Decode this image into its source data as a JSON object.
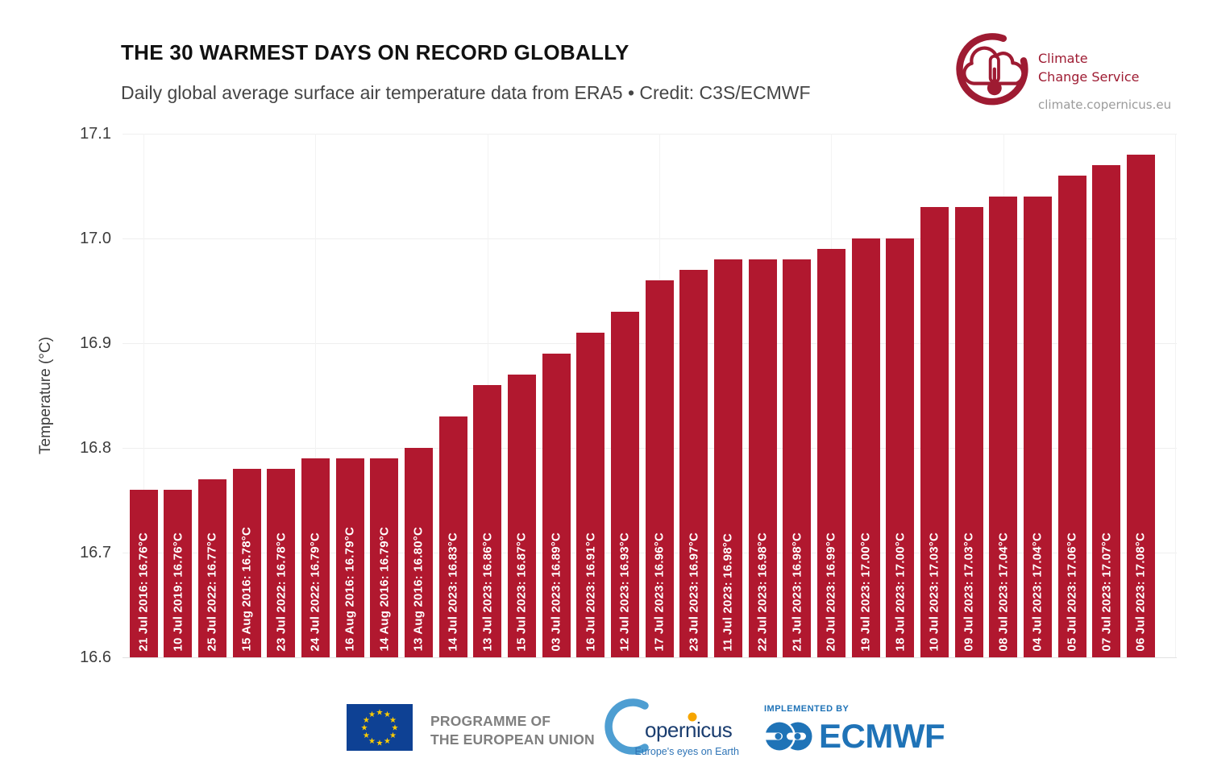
{
  "header": {
    "title": "THE 30 WARMEST DAYS ON RECORD GLOBALLY",
    "subtitle": "Daily global average surface air temperature data from ERA5 • Credit: C3S/ECMWF"
  },
  "c3s_logo": {
    "line1": "Climate",
    "line2": "Change Service",
    "url": "climate.copernicus.eu"
  },
  "colors": {
    "bar_red": "#b1182f",
    "c3s_red": "#9e1b32",
    "ecmwf_blue": "#1f73b7",
    "eu_flag_blue": "#0e4194",
    "eu_star_yellow": "#ffcc00",
    "copernicus_navy": "#1b3e70",
    "copernicus_tagline_blue": "#2e74b6",
    "copernicus_orange": "#f6a500"
  },
  "chart_data": {
    "type": "bar",
    "title": "THE 30 WARMEST DAYS ON RECORD GLOBALLY",
    "subtitle": "Daily global average surface air temperature data from ERA5 • Credit: C3S/ECMWF",
    "xlabel": "",
    "ylabel": "Temperature (°C)",
    "ylim": [
      16.6,
      17.1
    ],
    "yticks": [
      "16.6",
      "16.7",
      "16.8",
      "16.9",
      "17.0",
      "17.1"
    ],
    "grid": true,
    "legend_position": "none",
    "bar_color": "#b1182f",
    "categories": [
      "21 Jul 2016",
      "10 Jul 2019",
      "25 Jul 2022",
      "15 Aug 2016",
      "23 Jul 2022",
      "24 Jul 2022",
      "16 Aug 2016",
      "14 Aug 2016",
      "13 Aug 2016",
      "14 Jul 2023",
      "13 Jul 2023",
      "15 Jul 2023",
      "03 Jul 2023",
      "16 Jul 2023",
      "12 Jul 2023",
      "17 Jul 2023",
      "23 Jul 2023",
      "11 Jul 2023",
      "22 Jul 2023",
      "21 Jul 2023",
      "20 Jul 2023",
      "19 Jul 2023",
      "18 Jul 2023",
      "10 Jul 2023",
      "09 Jul 2023",
      "08 Jul 2023",
      "04 Jul 2023",
      "05 Jul 2023",
      "07 Jul 2023",
      "06 Jul 2023"
    ],
    "values": [
      16.76,
      16.76,
      16.77,
      16.78,
      16.78,
      16.79,
      16.79,
      16.79,
      16.8,
      16.83,
      16.86,
      16.87,
      16.89,
      16.91,
      16.93,
      16.96,
      16.97,
      16.98,
      16.98,
      16.98,
      16.99,
      17.0,
      17.0,
      17.03,
      17.03,
      17.04,
      17.04,
      17.06,
      17.07,
      17.08
    ],
    "bar_labels": [
      "21 Jul 2016: 16.76°C",
      "10 Jul 2019: 16.76°C",
      "25 Jul 2022: 16.77°C",
      "15 Aug 2016: 16.78°C",
      "23 Jul 2022: 16.78°C",
      "24 Jul 2022: 16.79°C",
      "16 Aug 2016: 16.79°C",
      "14 Aug 2016: 16.79°C",
      "13 Aug 2016: 16.80°C",
      "14 Jul 2023: 16.83°C",
      "13 Jul 2023: 16.86°C",
      "15 Jul 2023: 16.87°C",
      "03 Jul 2023: 16.89°C",
      "16 Jul 2023: 16.91°C",
      "12 Jul 2023: 16.93°C",
      "17 Jul 2023: 16.96°C",
      "23 Jul 2023: 16.97°C",
      "11 Jul 2023: 16.98°C",
      "22 Jul 2023: 16.98°C",
      "21 Jul 2023: 16.98°C",
      "20 Jul 2023: 16.99°C",
      "19 Jul 2023: 17.00°C",
      "18 Jul 2023: 17.00°C",
      "10 Jul 2023: 17.03°C",
      "09 Jul 2023: 17.03°C",
      "08 Jul 2023: 17.04°C",
      "04 Jul 2023: 17.04°C",
      "05 Jul 2023: 17.06°C",
      "07 Jul 2023: 17.07°C",
      "06 Jul 2023: 17.08°C"
    ]
  },
  "footer": {
    "eu_programme": {
      "line1": "PROGRAMME OF",
      "line2": "THE EUROPEAN UNION"
    },
    "copernicus": {
      "wordmark": "opernicus",
      "tagline": "Europe's eyes on Earth"
    },
    "ecmwf": {
      "implemented_by": "IMPLEMENTED BY",
      "name": "ECMWF"
    }
  }
}
